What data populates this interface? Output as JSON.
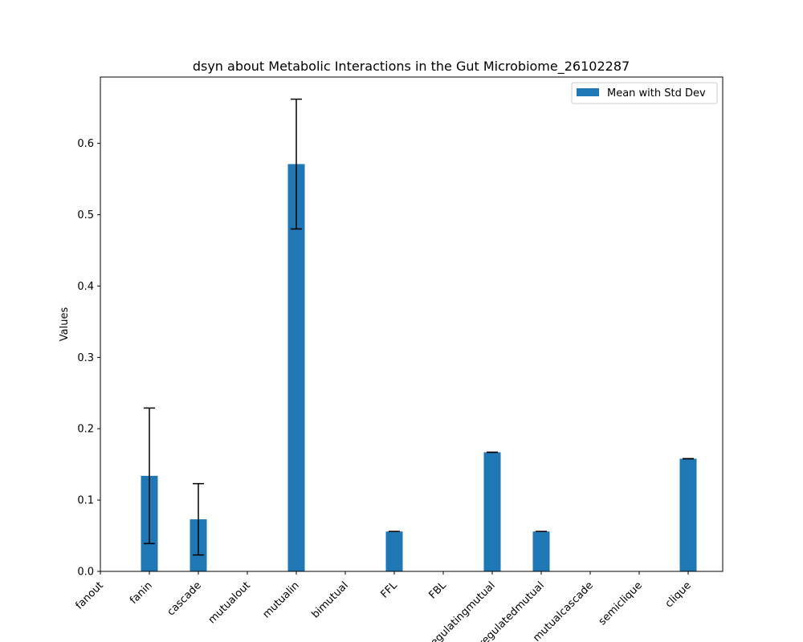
{
  "chart_data": {
    "type": "bar",
    "title": "dsyn about Metabolic Interactions in the Gut Microbiome_26102287",
    "xlabel": "",
    "ylabel": "Values",
    "categories": [
      "fanout",
      "fanin",
      "cascade",
      "mutualout",
      "mutualin",
      "bimutual",
      "FFL",
      "FBL",
      "regulatingmutual",
      "regulatedmutual",
      "mutualcascade",
      "semiclique",
      "clique"
    ],
    "series": [
      {
        "name": "Mean with Std Dev",
        "values": [
          0,
          0.134,
          0.073,
          0,
          0.571,
          0,
          0.056,
          0,
          0.167,
          0.056,
          0,
          0,
          0.158
        ],
        "errors": [
          0,
          0.095,
          0.05,
          0,
          0.091,
          0,
          0.0,
          0,
          0.0,
          0.0,
          0,
          0,
          0.0
        ]
      }
    ],
    "ylim": [
      0,
      0.693
    ],
    "yticks": [
      "0.0",
      "0.1",
      "0.2",
      "0.3",
      "0.4",
      "0.5",
      "0.6"
    ],
    "legend_position": "top-right",
    "grid": false,
    "bar_color": "#1f77b4",
    "error_color": "#000000"
  }
}
